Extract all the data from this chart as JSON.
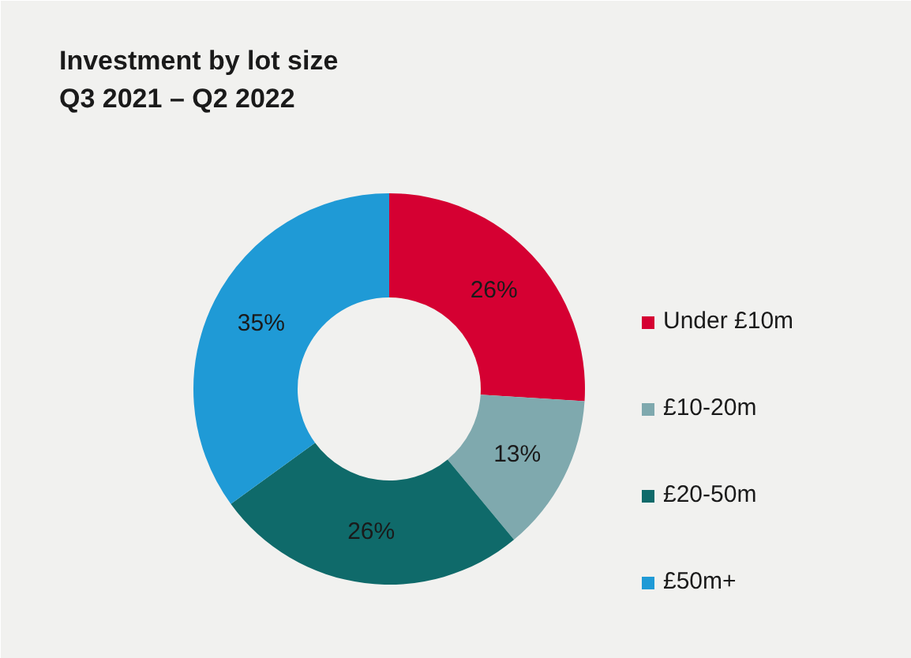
{
  "chart_data": {
    "type": "donut",
    "title": "Investment by lot size\nQ3 2021 – Q2 2022",
    "categories": [
      "Under £10m",
      "£10-20m",
      "£20-50m",
      "£50m+"
    ],
    "values": [
      26,
      13,
      26,
      35
    ],
    "colors": [
      "#d50032",
      "#7fa9ae",
      "#0f6a6a",
      "#1f9ad6"
    ],
    "value_labels": [
      "26%",
      "13%",
      "26%",
      "35%"
    ],
    "legend": "right"
  }
}
